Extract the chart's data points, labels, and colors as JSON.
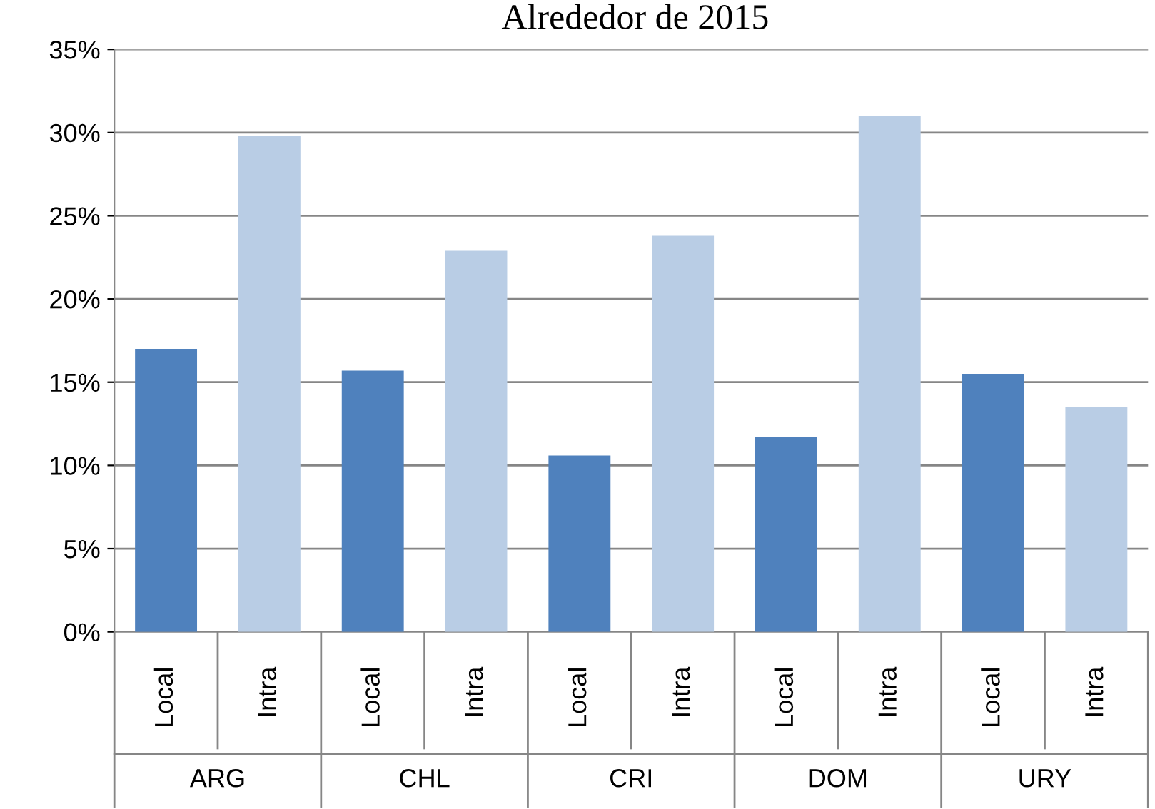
{
  "chart_data": {
    "type": "bar",
    "title": "Alrededor de 2015",
    "categories": [
      "ARG",
      "CHL",
      "CRI",
      "DOM",
      "URY"
    ],
    "series": [
      {
        "name": "Local",
        "color": "#4f81bd",
        "values": [
          17.0,
          15.7,
          10.6,
          11.7,
          15.5
        ]
      },
      {
        "name": "Intra",
        "color": "#b9cde5",
        "values": [
          29.8,
          22.9,
          23.8,
          31.0,
          13.5
        ]
      }
    ],
    "ylim": [
      0,
      35
    ],
    "yticks": [
      {
        "value": 0,
        "label": "0%"
      },
      {
        "value": 5,
        "label": "5%"
      },
      {
        "value": 10,
        "label": "10%"
      },
      {
        "value": 15,
        "label": "15%"
      },
      {
        "value": 20,
        "label": "20%"
      },
      {
        "value": 25,
        "label": "25%"
      },
      {
        "value": 30,
        "label": "30%"
      },
      {
        "value": 35,
        "label": "35%"
      }
    ],
    "grid": "y",
    "legend": false
  }
}
